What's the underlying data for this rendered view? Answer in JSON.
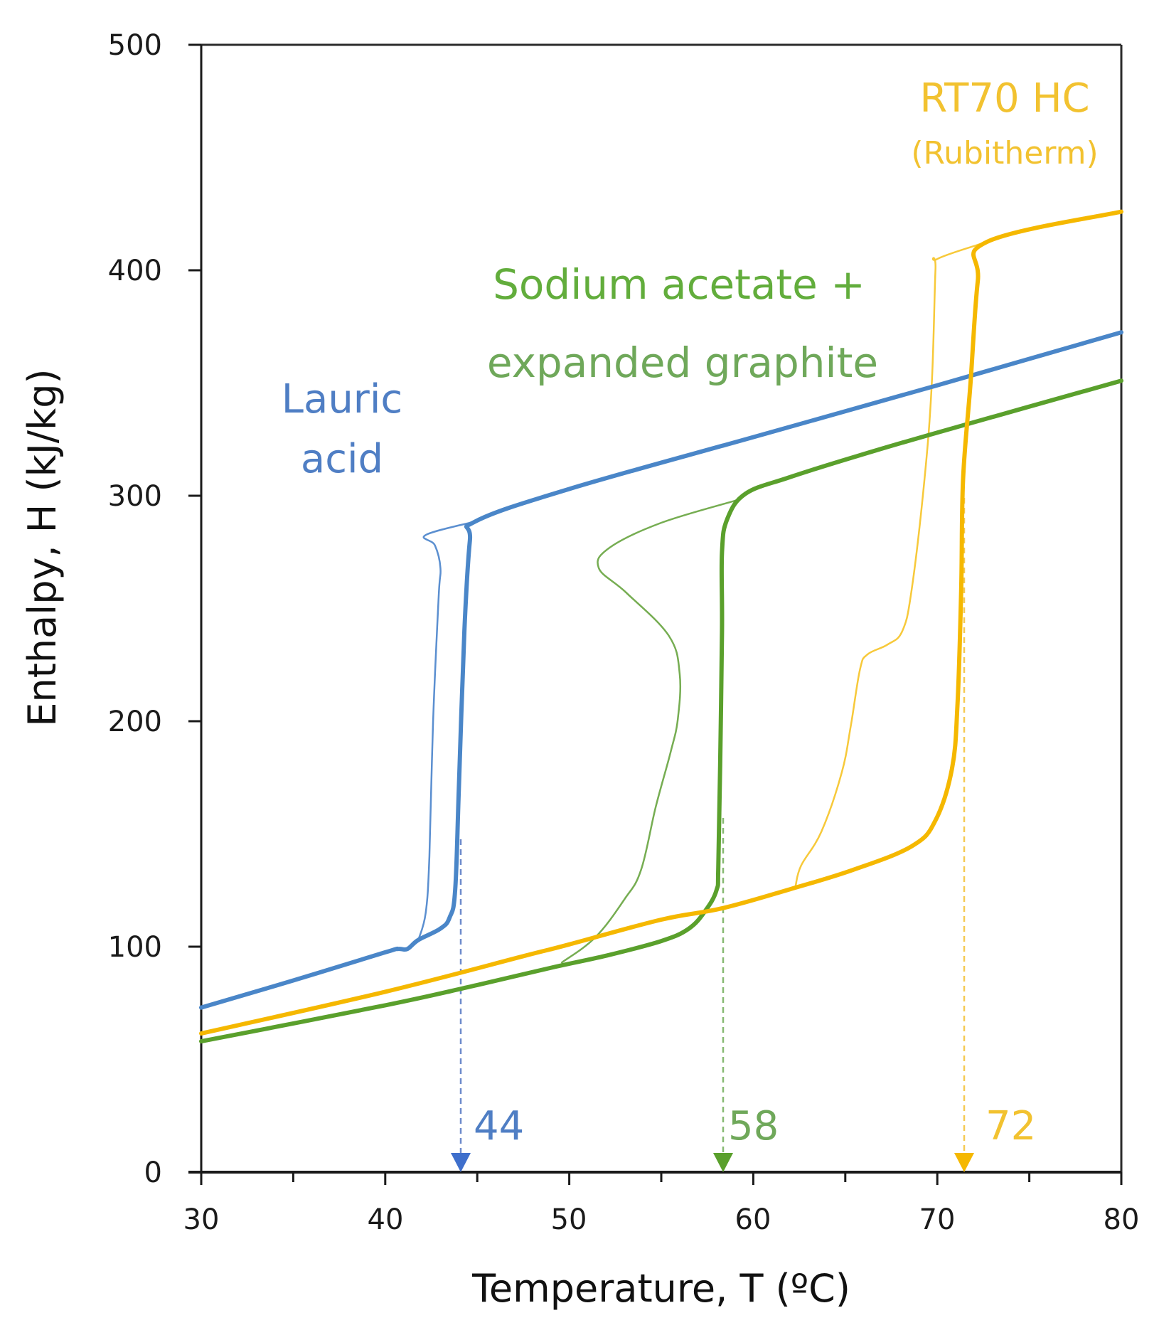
{
  "chart_data": {
    "type": "line",
    "title": "",
    "xlabel": "Temperature, T (ºC)",
    "ylabel": "Enthalpy, H (kJ/kg)",
    "xlim": [
      30,
      80
    ],
    "ylim": [
      0,
      500
    ],
    "xticks": [
      30,
      40,
      50,
      60,
      70,
      80
    ],
    "xminor_ticks": [
      35,
      45,
      55,
      65,
      75
    ],
    "yticks": [
      0,
      100,
      200,
      300,
      400,
      500
    ],
    "grid": false,
    "legend": "inline labels",
    "series": [
      {
        "name": "Lauric acid (heating)",
        "material": "Lauric acid",
        "color": "#4a86c8",
        "line": "thick",
        "points": [
          [
            30,
            73
          ],
          [
            35,
            85
          ],
          [
            40,
            97.5
          ],
          [
            40.7,
            99
          ],
          [
            41.2,
            99
          ],
          [
            41.8,
            103
          ],
          [
            43.0,
            108
          ],
          [
            43.5,
            113
          ],
          [
            43.8,
            125
          ],
          [
            44.0,
            170
          ],
          [
            44.3,
            240
          ],
          [
            44.6,
            280
          ],
          [
            44.9,
            288.6
          ],
          [
            50,
            303
          ],
          [
            60,
            326
          ],
          [
            70,
            349
          ],
          [
            80,
            372.5
          ]
        ]
      },
      {
        "name": "Lauric acid (cooling)",
        "material": "Lauric acid",
        "color": "#5b8fd0",
        "line": "thin",
        "points": [
          [
            41.8,
            103
          ],
          [
            42.2,
            115
          ],
          [
            42.4,
            140
          ],
          [
            42.6,
            200
          ],
          [
            42.9,
            255
          ],
          [
            43.0,
            268
          ],
          [
            42.7,
            278
          ],
          [
            42.2,
            282.6
          ],
          [
            44.9,
            288.6
          ]
        ]
      },
      {
        "name": "Sodium acetate + expanded graphite (heating)",
        "material": "Sodium acetate + expanded graphite",
        "color": "#5aa02c",
        "line": "thick",
        "points": [
          [
            30,
            58
          ],
          [
            40,
            74
          ],
          [
            45,
            83
          ],
          [
            49.2,
            91
          ],
          [
            52,
            96
          ],
          [
            55.0,
            102.5
          ],
          [
            56.5,
            108
          ],
          [
            57.4,
            116
          ],
          [
            58.0,
            125
          ],
          [
            58.1,
            135
          ],
          [
            58.2,
            180
          ],
          [
            58.3,
            240
          ],
          [
            58.3,
            275
          ],
          [
            58.6,
            290
          ],
          [
            59.6,
            301
          ],
          [
            61.9,
            308
          ],
          [
            65.4,
            317
          ],
          [
            70,
            328
          ],
          [
            80,
            351
          ]
        ]
      },
      {
        "name": "Sodium acetate + expanded graphite (cooling)",
        "material": "Sodium acetate + expanded graphite",
        "color": "#76ad52",
        "line": "thin",
        "points": [
          [
            49.6,
            93
          ],
          [
            51.4,
            104
          ],
          [
            53.0,
            121
          ],
          [
            53.9,
            134
          ],
          [
            54.7,
            162
          ],
          [
            55.5,
            186
          ],
          [
            55.9,
            201
          ],
          [
            56.0,
            221
          ],
          [
            55.4,
            238
          ],
          [
            53.1,
            257
          ],
          [
            51.6,
            268
          ],
          [
            52.2,
            277
          ],
          [
            55,
            288
          ],
          [
            59.1,
            298
          ]
        ]
      },
      {
        "name": "RT70 HC (Rubitherm) (heating)",
        "material": "RT70 HC (Rubitherm)",
        "color": "#f5b800",
        "line": "thick",
        "points": [
          [
            30,
            61.5
          ],
          [
            40,
            80
          ],
          [
            47.6,
            96
          ],
          [
            50,
            101
          ],
          [
            55,
            112
          ],
          [
            58.3,
            117
          ],
          [
            62.0,
            125.5
          ],
          [
            65.4,
            134
          ],
          [
            68.6,
            144.5
          ],
          [
            69.9,
            156
          ],
          [
            70.8,
            179
          ],
          [
            71.1,
            208
          ],
          [
            71.3,
            258
          ],
          [
            71.4,
            307
          ],
          [
            71.8,
            349.5
          ],
          [
            72.2,
            395
          ],
          [
            72.7,
            412.6
          ],
          [
            80,
            426
          ]
        ]
      },
      {
        "name": "RT70 HC (Rubitherm) (cooling)",
        "material": "RT70 HC (Rubitherm)",
        "color": "#f7c93a",
        "line": "thin",
        "points": [
          [
            62.3,
            127
          ],
          [
            62.6,
            136
          ],
          [
            63.7,
            151
          ],
          [
            64.8,
            177
          ],
          [
            65.3,
            198
          ],
          [
            65.8,
            223
          ],
          [
            66.2,
            229.6
          ],
          [
            67.3,
            234
          ],
          [
            68.1,
            240
          ],
          [
            68.6,
            258
          ],
          [
            69.3,
            307
          ],
          [
            69.7,
            349.5
          ],
          [
            69.9,
            400
          ],
          [
            70.0,
            405
          ],
          [
            72.7,
            412.6
          ]
        ]
      }
    ],
    "annotations": [
      {
        "text": "Lauric acid",
        "color": "#5b8fd0",
        "x": 42.5,
        "y": 330
      },
      {
        "text": "Sodium acetate + expanded graphite",
        "color": "#5aa02c",
        "x": 57,
        "y": 400
      },
      {
        "text": "RT70 HC (Rubitherm)",
        "color": "#f5b800",
        "x": 74.5,
        "y": 460
      },
      {
        "text": "44",
        "color": "#4a6fc0",
        "marker_T": 44.1,
        "arrow": "down-triangle"
      },
      {
        "text": "58",
        "color": "#6aa84f",
        "marker_T": 58.3,
        "arrow": "down-triangle"
      },
      {
        "text": "72",
        "color": "#f5b800",
        "marker_T": 71.4,
        "arrow": "down-triangle"
      }
    ]
  },
  "axes": {
    "x_label": "Temperature, T (ºC)",
    "y_label": "Enthalpy, H (kJ/kg)",
    "x_tick_labels": [
      "30",
      "40",
      "50",
      "60",
      "70",
      "80"
    ],
    "y_tick_labels": [
      "0",
      "100",
      "200",
      "300",
      "400",
      "500"
    ]
  },
  "labels": {
    "lauric_line1": "Lauric",
    "lauric_line2": "acid",
    "sodium_line1": "Sodium acetate +",
    "sodium_line2": "expanded graphite",
    "rt70_line1": "RT70 HC",
    "rt70_line2": "(Rubitherm)",
    "marker_lauric": "44",
    "marker_sodium": "58",
    "marker_rt70": "72"
  },
  "colors": {
    "blue_text": "#4f7ec4",
    "green_text": "#62ad3c",
    "green_text_light": "#6fa85a",
    "yellow_text": "#f2c230",
    "axis": "#1a1a1a"
  }
}
